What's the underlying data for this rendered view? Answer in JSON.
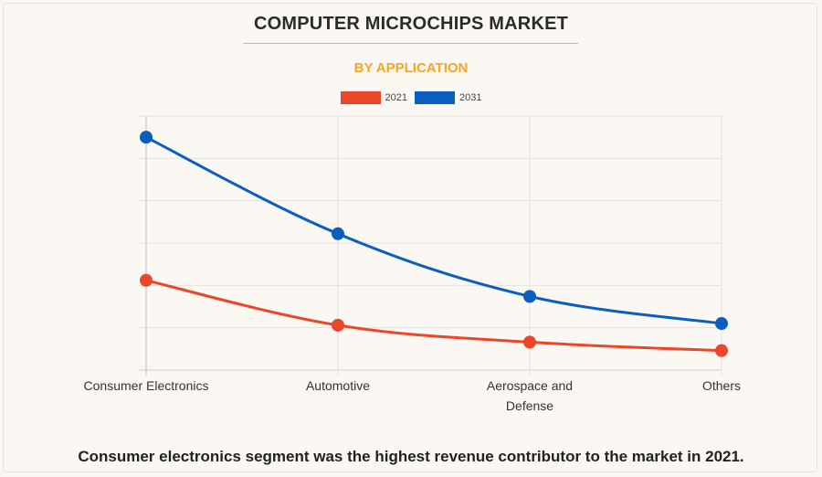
{
  "chart_data": {
    "type": "line",
    "title": "COMPUTER MICROCHIPS MARKET",
    "subtitle": "BY APPLICATION",
    "categories": [
      [
        "Consumer Electronics"
      ],
      [
        "Automotive"
      ],
      [
        "Aerospace and",
        "Defense"
      ],
      [
        "Others"
      ]
    ],
    "series": [
      {
        "name": "2021",
        "color": "#e8472a",
        "values": [
          21.2,
          10.6,
          6.6,
          4.6
        ]
      },
      {
        "name": "2031",
        "color": "#0a5ebf",
        "values": [
          55.0,
          32.2,
          17.4,
          11.0
        ]
      }
    ],
    "ylim": [
      0,
      60
    ],
    "grid": true,
    "y_tick_labels_visible": false,
    "legend_position": "top-center",
    "caption": "Consumer electronics segment was the highest revenue contributor to the market in 2021."
  }
}
